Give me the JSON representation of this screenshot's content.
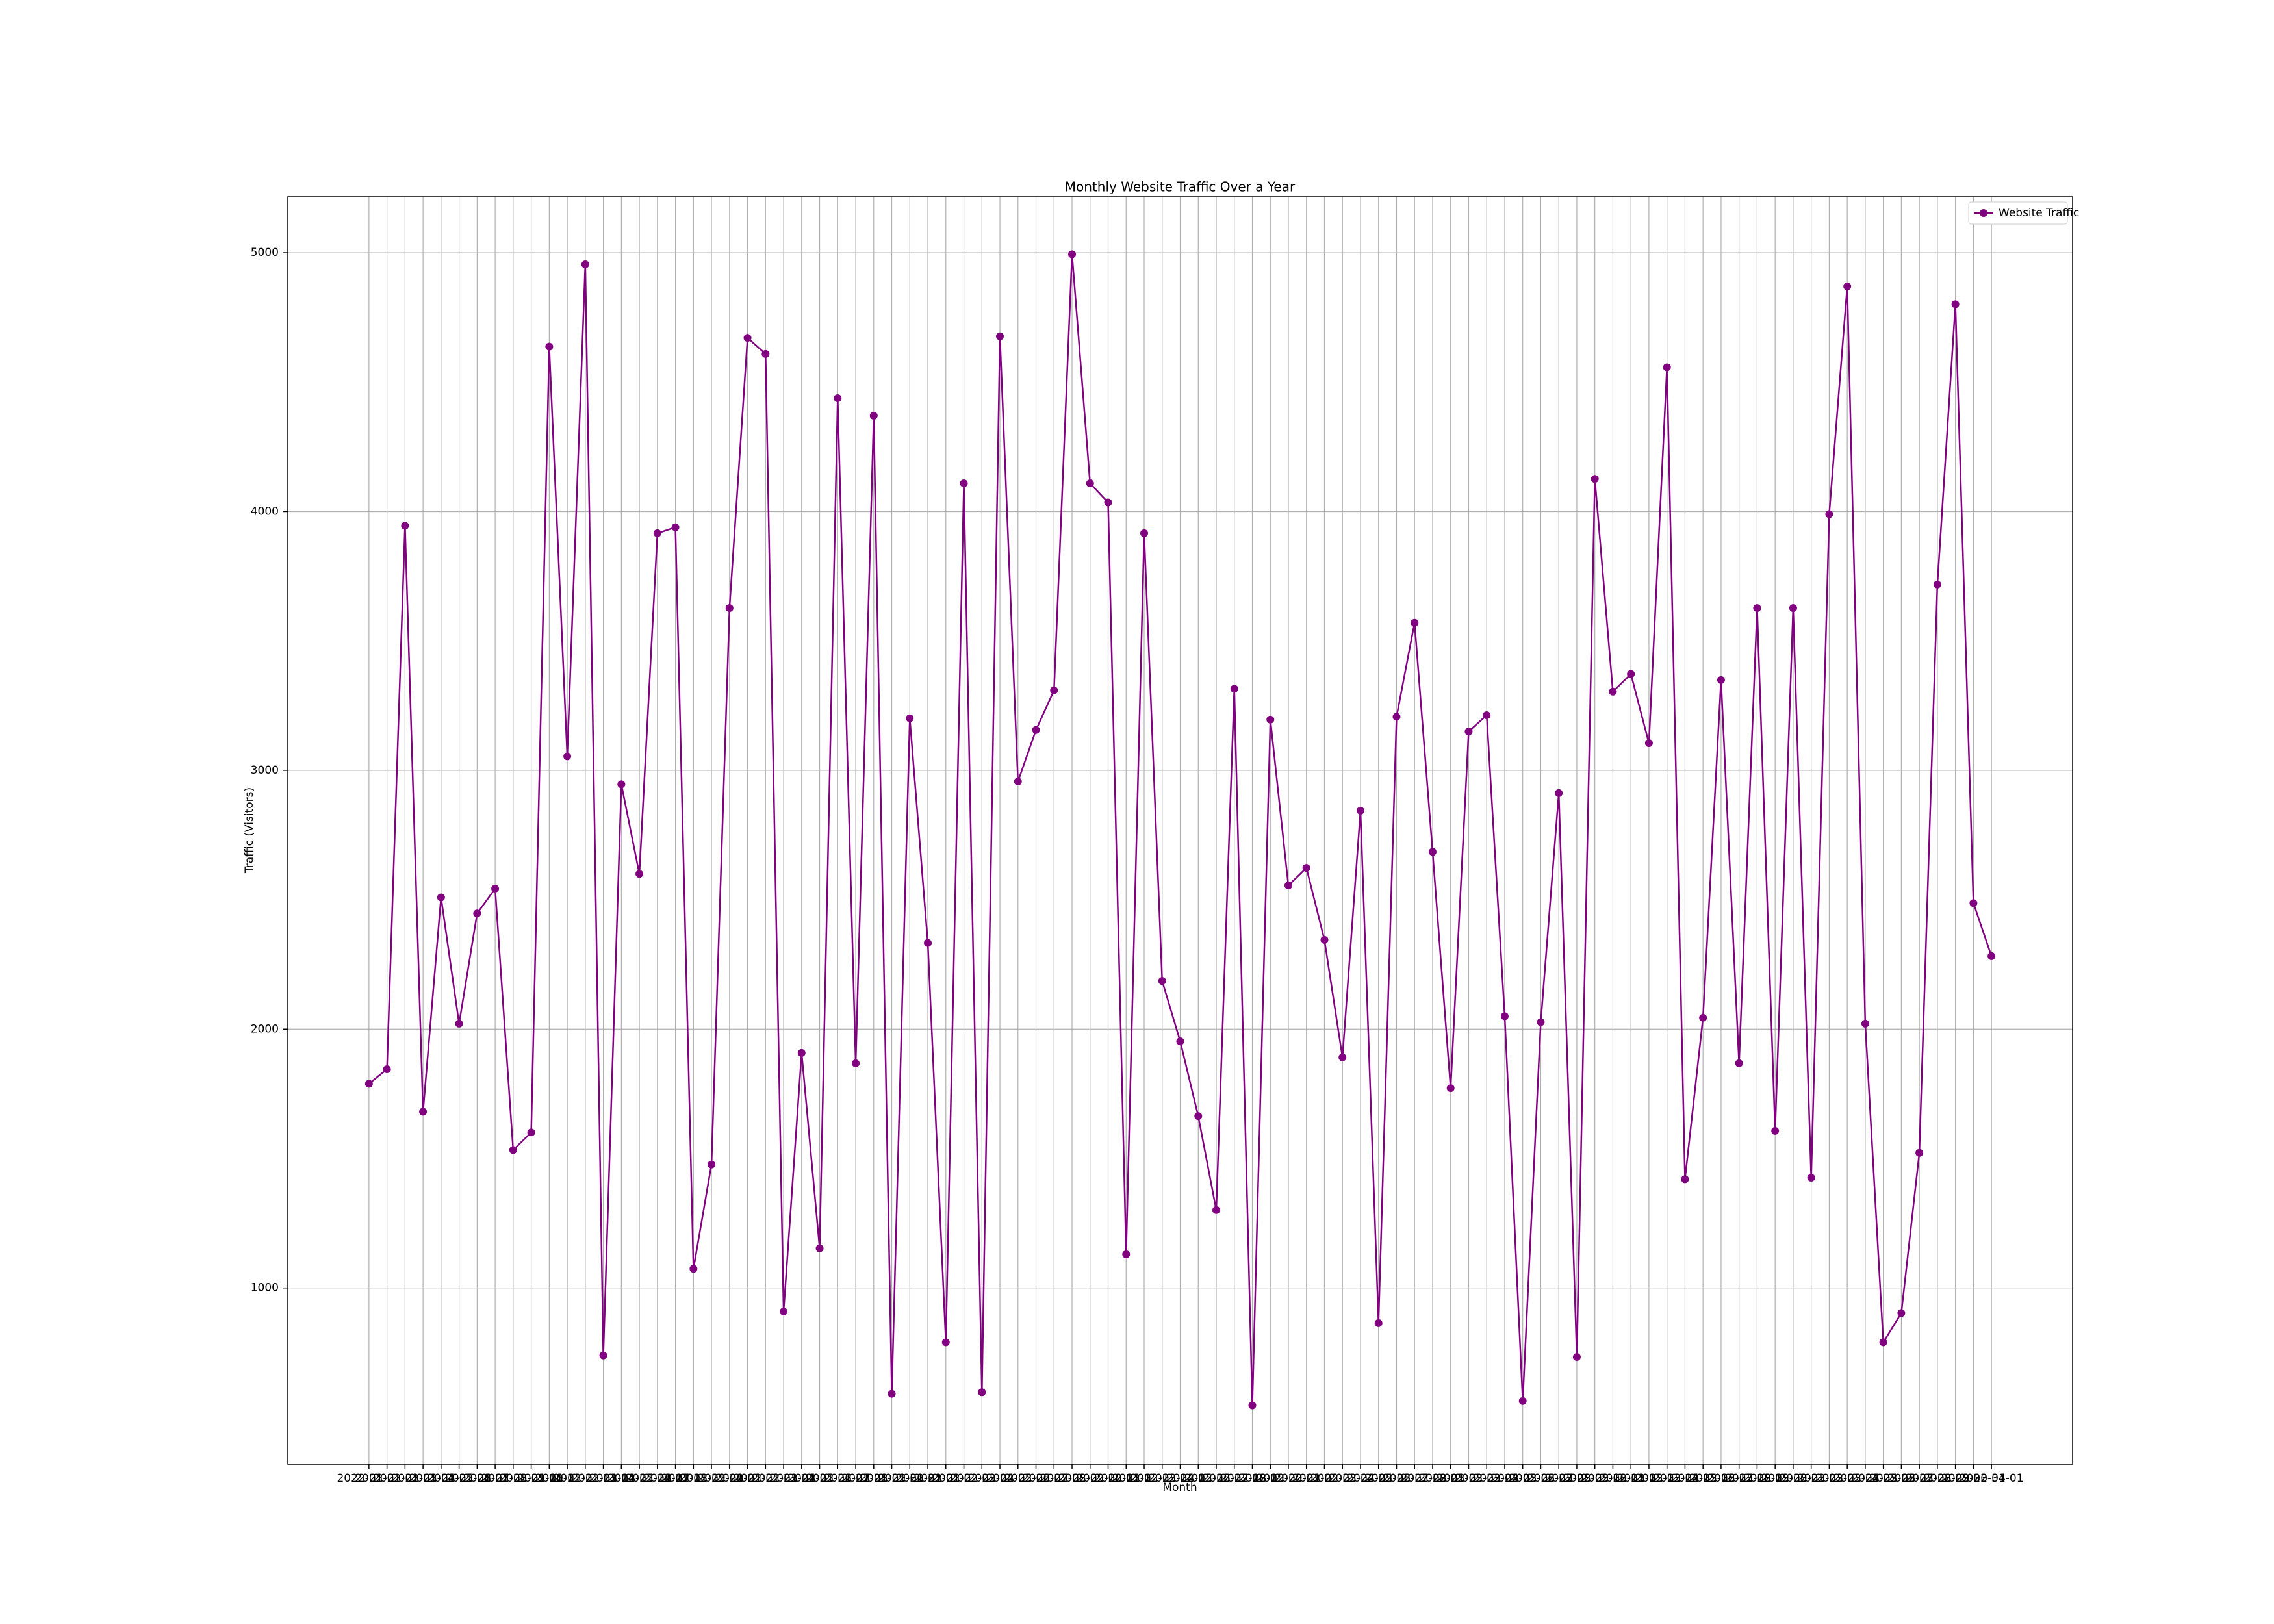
{
  "chart_data": {
    "type": "line",
    "title": "Monthly Website Traffic Over a Year",
    "x_label": "Month",
    "y_label": "Traffic (Visitors)",
    "categories": [
      "2022-01-01",
      "2022-01-02",
      "2022-01-03",
      "2022-01-04",
      "2022-01-05",
      "2022-01-06",
      "2022-01-07",
      "2022-01-08",
      "2022-01-09",
      "2022-01-10",
      "2022-01-11",
      "2022-01-12",
      "2022-01-13",
      "2022-01-14",
      "2022-01-15",
      "2022-01-16",
      "2022-01-17",
      "2022-01-18",
      "2022-01-19",
      "2022-01-20",
      "2022-01-21",
      "2022-01-22",
      "2022-01-23",
      "2022-01-24",
      "2022-01-25",
      "2022-01-26",
      "2022-01-27",
      "2022-01-28",
      "2022-01-29",
      "2022-01-30",
      "2022-01-31",
      "2022-02-01",
      "2022-02-02",
      "2022-02-03",
      "2022-02-04",
      "2022-02-05",
      "2022-02-06",
      "2022-02-07",
      "2022-02-08",
      "2022-02-09",
      "2022-02-10",
      "2022-02-11",
      "2022-02-12",
      "2022-02-13",
      "2022-02-14",
      "2022-02-15",
      "2022-02-16",
      "2022-02-17",
      "2022-02-18",
      "2022-02-19",
      "2022-02-20",
      "2022-02-21",
      "2022-02-22",
      "2022-02-23",
      "2022-02-24",
      "2022-02-25",
      "2022-02-26",
      "2022-02-27",
      "2022-02-28",
      "2022-03-01",
      "2022-03-02",
      "2022-03-03",
      "2022-03-04",
      "2022-03-05",
      "2022-03-06",
      "2022-03-07",
      "2022-03-08",
      "2022-03-09",
      "2022-03-10",
      "2022-03-11",
      "2022-03-12",
      "2022-03-13",
      "2022-03-14",
      "2022-03-15",
      "2022-03-16",
      "2022-03-17",
      "2022-03-18",
      "2022-03-19",
      "2022-03-20",
      "2022-03-21",
      "2022-03-22",
      "2022-03-23",
      "2022-03-24",
      "2022-03-25",
      "2022-03-26",
      "2022-03-27",
      "2022-03-28",
      "2022-03-29",
      "2022-03-30",
      "2022-03-31",
      "2022-04-01"
    ],
    "series": [
      {
        "name": "Website Traffic",
        "color": "#800080",
        "values": [
          1789,
          1845,
          3945,
          1681,
          2509,
          2021,
          2447,
          2543,
          1533,
          1601,
          4637,
          3054,
          4955,
          739,
          2946,
          2600,
          3916,
          3939,
          1074,
          1477,
          3627,
          4671,
          4609,
          909,
          1908,
          1153,
          4438,
          1868,
          4370,
          591,
          3201,
          2333,
          790,
          4109,
          597,
          4677,
          2957,
          3156,
          3309,
          4994,
          4109,
          4035,
          1130,
          3916,
          2186,
          1953,
          1664,
          1301,
          3315,
          546,
          3196,
          2555,
          2623,
          2345,
          1891,
          2844,
          864,
          3207,
          3570,
          2685,
          1772,
          3150,
          3213,
          2050,
          563,
          2027,
          2912,
          733,
          4126,
          3304,
          3372,
          3105,
          4557,
          1420,
          2044,
          3349,
          1868,
          3627,
          1607,
          3627,
          1426,
          3990,
          4870,
          2021,
          790,
          903,
          1522,
          3718,
          4801,
          2487,
          2282
        ]
      }
    ],
    "ylim": [
      319,
      5216
    ],
    "yticks": [
      1000,
      2000,
      3000,
      4000,
      5000
    ],
    "grid": true,
    "legend": "upper right"
  }
}
